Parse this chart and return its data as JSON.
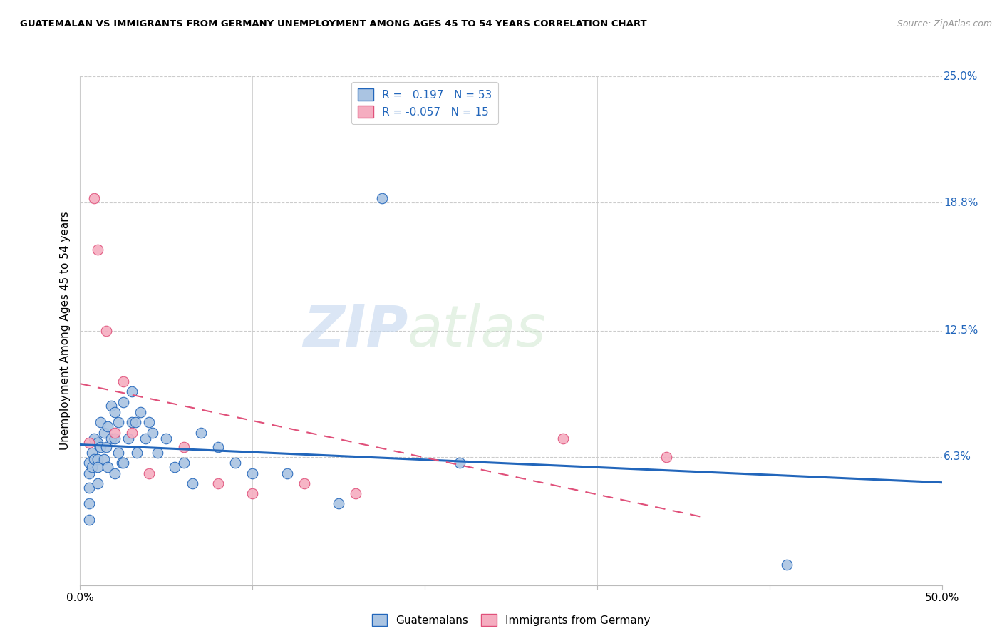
{
  "title": "GUATEMALAN VS IMMIGRANTS FROM GERMANY UNEMPLOYMENT AMONG AGES 45 TO 54 YEARS CORRELATION CHART",
  "source": "Source: ZipAtlas.com",
  "ylabel": "Unemployment Among Ages 45 to 54 years",
  "ylim": [
    0,
    0.25
  ],
  "xlim": [
    0,
    0.5
  ],
  "ytick_vals": [
    0.0,
    0.063,
    0.125,
    0.188,
    0.25
  ],
  "blue_R": 0.197,
  "blue_N": 53,
  "pink_R": -0.057,
  "pink_N": 15,
  "blue_color": "#aac4e2",
  "pink_color": "#f5adc0",
  "blue_line_color": "#2266bb",
  "pink_line_color": "#e0507a",
  "watermark_zip": "ZIP",
  "watermark_atlas": "atlas",
  "guatemalan_x": [
    0.005,
    0.005,
    0.005,
    0.005,
    0.005,
    0.007,
    0.007,
    0.008,
    0.008,
    0.01,
    0.01,
    0.01,
    0.01,
    0.012,
    0.012,
    0.014,
    0.014,
    0.015,
    0.016,
    0.016,
    0.018,
    0.018,
    0.02,
    0.02,
    0.02,
    0.022,
    0.022,
    0.024,
    0.025,
    0.025,
    0.028,
    0.03,
    0.03,
    0.032,
    0.033,
    0.035,
    0.038,
    0.04,
    0.042,
    0.045,
    0.05,
    0.055,
    0.06,
    0.065,
    0.07,
    0.08,
    0.09,
    0.1,
    0.12,
    0.15,
    0.175,
    0.22,
    0.41
  ],
  "guatemalan_y": [
    0.06,
    0.055,
    0.048,
    0.04,
    0.032,
    0.065,
    0.058,
    0.072,
    0.062,
    0.07,
    0.062,
    0.058,
    0.05,
    0.08,
    0.068,
    0.075,
    0.062,
    0.068,
    0.078,
    0.058,
    0.088,
    0.072,
    0.085,
    0.072,
    0.055,
    0.08,
    0.065,
    0.06,
    0.09,
    0.06,
    0.072,
    0.095,
    0.08,
    0.08,
    0.065,
    0.085,
    0.072,
    0.08,
    0.075,
    0.065,
    0.072,
    0.058,
    0.06,
    0.05,
    0.075,
    0.068,
    0.06,
    0.055,
    0.055,
    0.04,
    0.19,
    0.06,
    0.01
  ],
  "germany_x": [
    0.005,
    0.008,
    0.01,
    0.015,
    0.02,
    0.025,
    0.03,
    0.04,
    0.06,
    0.08,
    0.1,
    0.13,
    0.16,
    0.28,
    0.34
  ],
  "germany_y": [
    0.07,
    0.19,
    0.165,
    0.125,
    0.075,
    0.1,
    0.075,
    0.055,
    0.068,
    0.05,
    0.045,
    0.05,
    0.045,
    0.072,
    0.063
  ],
  "blue_line_x_start": 0.0,
  "blue_line_x_end": 0.5,
  "pink_line_x_start": 0.0,
  "pink_line_x_end": 0.36
}
